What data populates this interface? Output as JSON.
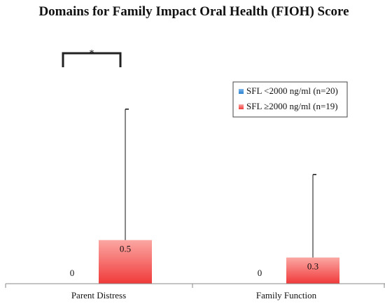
{
  "chart_data": {
    "type": "bar",
    "title": "Domains for Family Impact Oral Health (FIOH) Score",
    "categories": [
      "Parent Distress",
      "Family Function"
    ],
    "series": [
      {
        "name": "SFL <2000 ng/ml (n=20)",
        "values": [
          0,
          0
        ],
        "color": "#3a8fd6"
      },
      {
        "name": "SFL ≥2000 ng/ml (n=19)",
        "values": [
          0.5,
          0.3
        ],
        "color": "#f04646",
        "error_upper": [
          2.0,
          1.25
        ]
      }
    ],
    "value_labels": [
      [
        "0",
        "0"
      ],
      [
        "0.5",
        "0.3"
      ]
    ],
    "ylim": [
      0,
      2.4
    ],
    "significance": {
      "label": "*",
      "category": "Parent Distress"
    },
    "legend_position": "top-right",
    "grid": false,
    "xlabel": "",
    "ylabel": ""
  }
}
